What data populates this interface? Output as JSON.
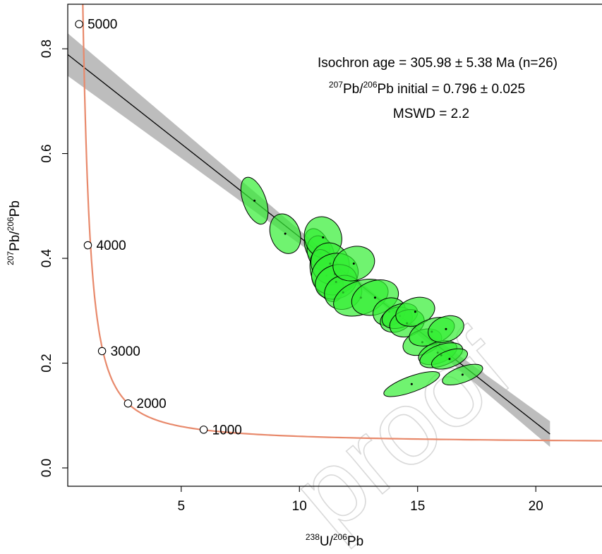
{
  "colors": {
    "concordia": "#e8896b",
    "ellipse_fill": "#33ee33",
    "ellipse_stroke": "#000000",
    "confidence_band": "#bdbdbd",
    "regression_line": "#000000",
    "watermark": "#d9d9d9"
  },
  "watermark_text": "proof",
  "chart_data": {
    "type": "scatter",
    "title": "",
    "xlabel": {
      "pre1": "238",
      "mid1": "U/",
      "pre2": "206",
      "mid2": "Pb"
    },
    "ylabel": {
      "pre1": "207",
      "mid1": "Pb/",
      "pre2": "206",
      "mid2": "Pb"
    },
    "xlim": [
      0.2,
      22.8
    ],
    "ylim": [
      -0.035,
      0.885
    ],
    "xticks": [
      5,
      10,
      15,
      20
    ],
    "xtick_labels": [
      "5",
      "10",
      "15",
      "20"
    ],
    "yticks": [
      0.0,
      0.2,
      0.4,
      0.6,
      0.8
    ],
    "ytick_labels": [
      "0.0",
      "0.2",
      "0.4",
      "0.6",
      "0.8"
    ],
    "grid": false,
    "annotations": {
      "line1": "Isochron age = 305.98 ± 5.38 Ma (n=26)",
      "line2_sup": "207",
      "line2_a": "Pb/",
      "line2_sup2": "206",
      "line2_b": "Pb initial = 0.796 ± 0.025",
      "line3": "MSWD = 2.2"
    },
    "concordia": {
      "age_markers": [
        {
          "label": "5000",
          "x": 0.68,
          "y": 0.847
        },
        {
          "label": "4000",
          "x": 1.05,
          "y": 0.425
        },
        {
          "label": "3000",
          "x": 1.65,
          "y": 0.223
        },
        {
          "label": "2000",
          "x": 2.75,
          "y": 0.123
        },
        {
          "label": "1000",
          "x": 5.95,
          "y": 0.073
        }
      ]
    },
    "isochron": {
      "intercept": 0.796,
      "slope": -0.0355,
      "x_range": [
        0.2,
        20.6
      ]
    },
    "series": [
      {
        "points": [
          {
            "x": 8.1,
            "y": 0.51,
            "sx": 0.48,
            "sy": 0.047
          },
          {
            "x": 9.4,
            "y": 0.447,
            "sx": 0.62,
            "sy": 0.039
          },
          {
            "x": 10.75,
            "y": 0.422,
            "sx": 0.5,
            "sy": 0.036
          },
          {
            "x": 10.9,
            "y": 0.41,
            "sx": 0.55,
            "sy": 0.034
          },
          {
            "x": 11.0,
            "y": 0.44,
            "sx": 0.78,
            "sy": 0.04
          },
          {
            "x": 11.15,
            "y": 0.367,
            "sx": 0.62,
            "sy": 0.052
          },
          {
            "x": 11.3,
            "y": 0.39,
            "sx": 0.8,
            "sy": 0.04
          },
          {
            "x": 11.5,
            "y": 0.37,
            "sx": 1.0,
            "sy": 0.039
          },
          {
            "x": 11.55,
            "y": 0.355,
            "sx": 0.9,
            "sy": 0.032
          },
          {
            "x": 11.85,
            "y": 0.335,
            "sx": 0.8,
            "sy": 0.032
          },
          {
            "x": 12.3,
            "y": 0.39,
            "sx": 0.9,
            "sy": 0.032
          },
          {
            "x": 12.6,
            "y": 0.325,
            "sx": 1.2,
            "sy": 0.032
          },
          {
            "x": 13.2,
            "y": 0.325,
            "sx": 1.02,
            "sy": 0.032
          },
          {
            "x": 13.8,
            "y": 0.298,
            "sx": 0.7,
            "sy": 0.026
          },
          {
            "x": 14.1,
            "y": 0.283,
            "sx": 0.7,
            "sy": 0.023
          },
          {
            "x": 14.25,
            "y": 0.29,
            "sx": 0.78,
            "sy": 0.022
          },
          {
            "x": 14.55,
            "y": 0.276,
            "sx": 0.75,
            "sy": 0.025
          },
          {
            "x": 14.9,
            "y": 0.298,
            "sx": 0.85,
            "sy": 0.026
          },
          {
            "x": 15.2,
            "y": 0.24,
            "sx": 0.85,
            "sy": 0.023
          },
          {
            "x": 15.6,
            "y": 0.26,
            "sx": 1.0,
            "sy": 0.024
          },
          {
            "x": 15.85,
            "y": 0.22,
            "sx": 0.85,
            "sy": 0.02
          },
          {
            "x": 16.0,
            "y": 0.215,
            "sx": 0.95,
            "sy": 0.02
          },
          {
            "x": 16.2,
            "y": 0.265,
            "sx": 0.78,
            "sy": 0.024
          },
          {
            "x": 16.35,
            "y": 0.208,
            "sx": 0.8,
            "sy": 0.016
          },
          {
            "x": 14.75,
            "y": 0.16,
            "sx": 1.25,
            "sy": 0.015
          },
          {
            "x": 16.9,
            "y": 0.178,
            "sx": 0.9,
            "sy": 0.015
          }
        ]
      }
    ]
  }
}
